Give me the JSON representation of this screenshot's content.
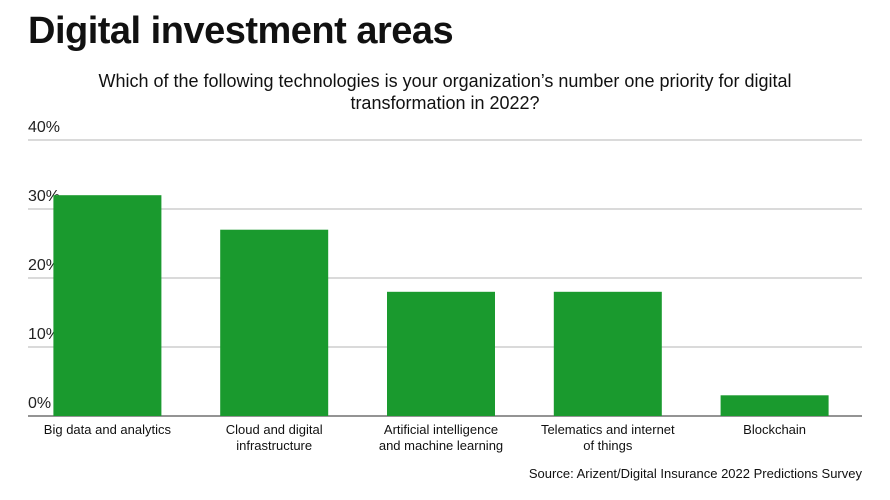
{
  "title": "Digital investment areas",
  "subtitle": "Which of the following technologies is your organization’s number one priority for digital transformation in 2022?",
  "source": "Source: Arizent/Digital Insurance 2022 Predictions Survey",
  "colors": {
    "bar": "#1a9a2e",
    "grid": "#b5b5b5",
    "axis": "#555555"
  },
  "chart_data": {
    "type": "bar",
    "title": "Digital investment areas",
    "subtitle": "Which of the following technologies is your organization’s number one priority for digital transformation in 2022?",
    "categories": [
      [
        "Big data and analytics"
      ],
      [
        "Cloud and digital",
        "infrastructure"
      ],
      [
        "Artificial intelligence",
        "and machine learning"
      ],
      [
        "Telematics and internet",
        "of things"
      ],
      [
        "Blockchain"
      ]
    ],
    "values": [
      32,
      27,
      18,
      18,
      3
    ],
    "unit": "%",
    "ylim": [
      0,
      40
    ],
    "yticks": [
      "0%",
      "10%",
      "20%",
      "30%",
      "40%"
    ],
    "xlabel": "",
    "ylabel": "",
    "grid": true,
    "legend": "none"
  }
}
